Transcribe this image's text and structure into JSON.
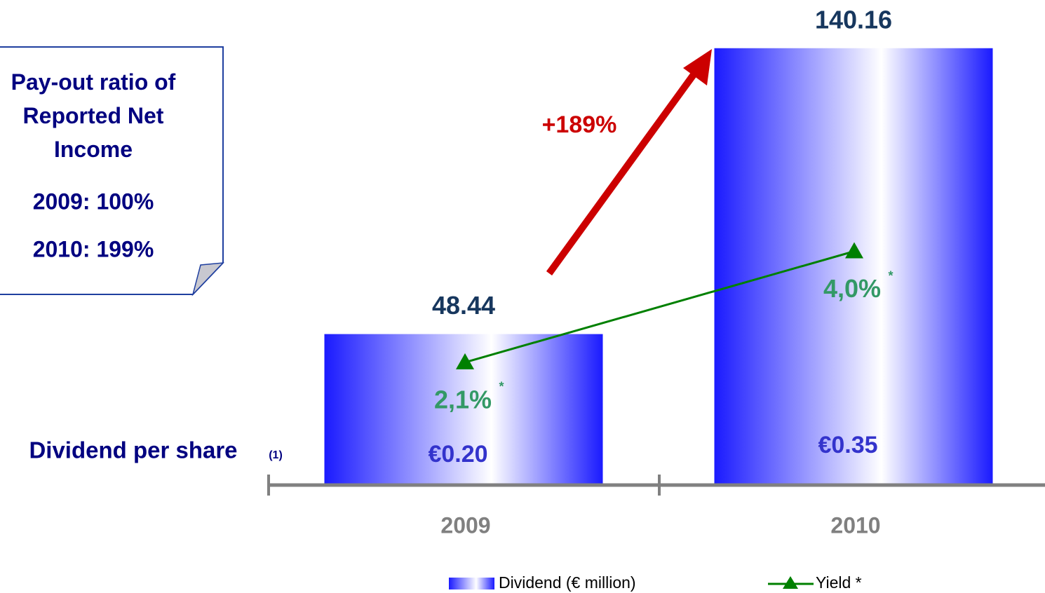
{
  "chart_data": {
    "type": "bar",
    "categories": [
      "2009",
      "2010"
    ],
    "series": [
      {
        "name": "Dividend (€ million)",
        "color": "#1a1aff",
        "values": [
          48.44,
          140.16
        ]
      },
      {
        "name": "Yield *",
        "type": "line",
        "axis": "y2",
        "color": "#008000",
        "values": [
          2.1,
          4.0
        ],
        "value_labels": [
          "2,1%",
          "4,0%"
        ],
        "value_label_note": "*"
      }
    ],
    "ylim": [
      0,
      150
    ],
    "y2lim": [
      0,
      8
    ],
    "annotation": "+189%",
    "dividend_per_share": {
      "label": "Dividend per share",
      "note": "(1)",
      "value_labels": [
        "€0.20",
        "€0.35"
      ]
    },
    "note_box": {
      "title": "Pay-out ratio of Reported Net Income",
      "lines": [
        "2009: 100%",
        "2010: 199%"
      ]
    }
  }
}
